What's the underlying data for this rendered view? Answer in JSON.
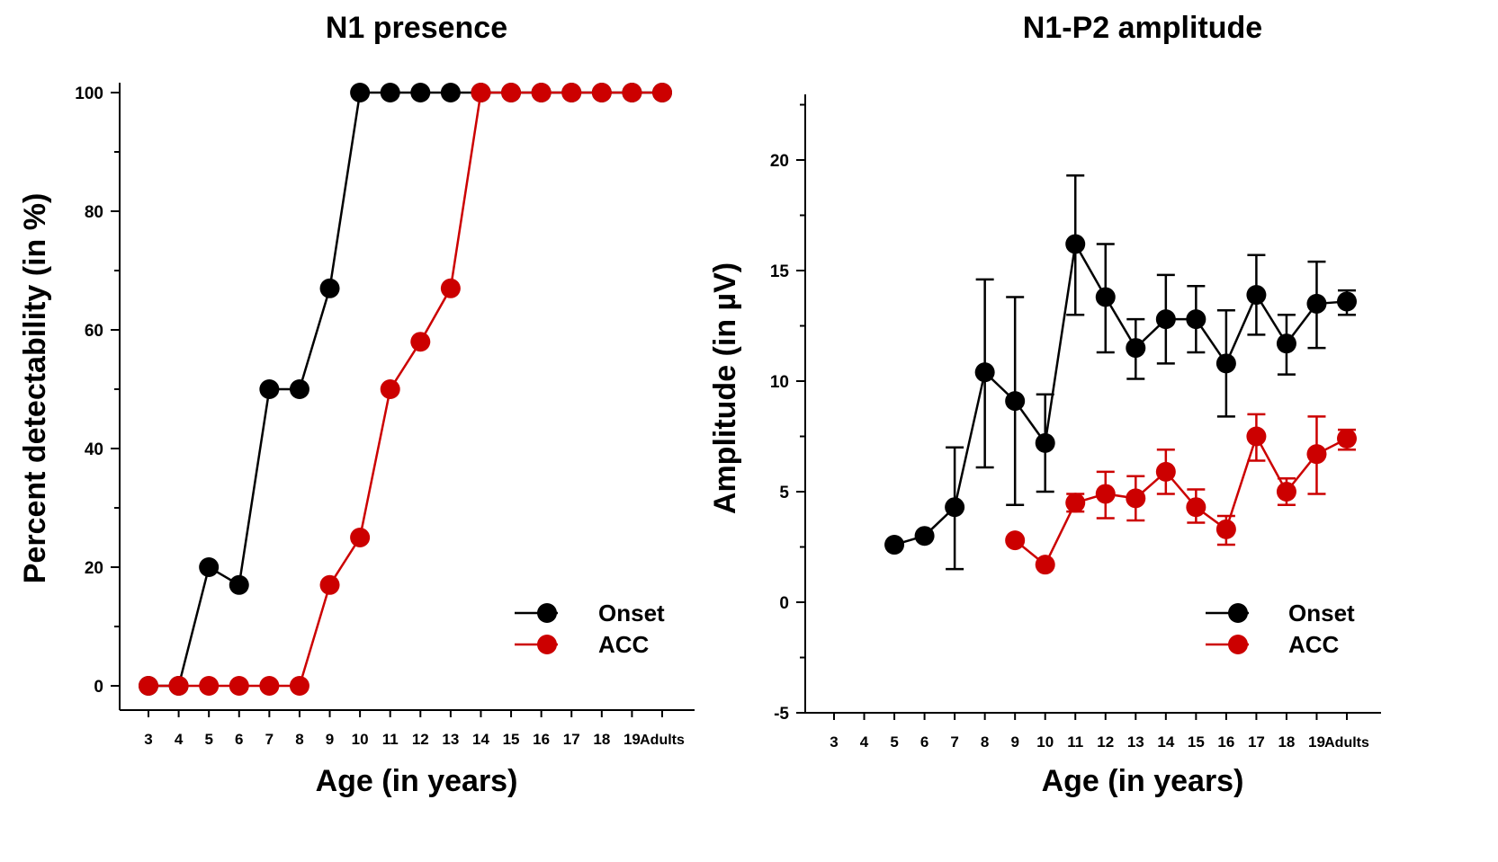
{
  "chart_data": [
    {
      "type": "line",
      "title": "N1 presence",
      "xlabel": "Age (in years)",
      "ylabel": "Percent detectability (in %)",
      "categories": [
        "3",
        "4",
        "5",
        "6",
        "7",
        "8",
        "9",
        "10",
        "11",
        "12",
        "13",
        "14",
        "15",
        "16",
        "17",
        "18",
        "19",
        "Adults"
      ],
      "ylim": [
        0,
        100
      ],
      "yticks": [
        0,
        20,
        40,
        60,
        80,
        100
      ],
      "legend_position": "bottom-right",
      "series": [
        {
          "name": "Onset",
          "color": "#000000",
          "values": [
            0,
            0,
            20,
            17,
            50,
            50,
            67,
            100,
            100,
            100,
            100,
            100,
            100,
            100,
            100,
            100,
            100,
            100
          ]
        },
        {
          "name": "ACC",
          "color": "#cc0000",
          "values": [
            0,
            0,
            0,
            0,
            0,
            0,
            17,
            25,
            50,
            58,
            67,
            100,
            100,
            100,
            100,
            100,
            100,
            100
          ]
        }
      ]
    },
    {
      "type": "line",
      "title": "N1-P2 amplitude",
      "xlabel": "Age (in years)",
      "ylabel": "Amplitude (in µV)",
      "categories": [
        "3",
        "4",
        "5",
        "6",
        "7",
        "8",
        "9",
        "10",
        "11",
        "12",
        "13",
        "14",
        "15",
        "16",
        "17",
        "18",
        "19",
        "Adults"
      ],
      "ylim": [
        -5,
        24
      ],
      "yticks": [
        -5,
        0,
        5,
        10,
        15,
        20
      ],
      "legend_position": "bottom-right",
      "series": [
        {
          "name": "Onset",
          "color": "#000000",
          "values": [
            null,
            null,
            2.6,
            3.0,
            4.3,
            10.4,
            9.1,
            7.2,
            16.2,
            13.8,
            11.5,
            12.8,
            12.8,
            10.8,
            13.9,
            11.7,
            13.5,
            13.6
          ],
          "err_low": [
            null,
            null,
            null,
            null,
            1.5,
            6.1,
            4.4,
            5.0,
            13.0,
            11.3,
            10.1,
            10.8,
            11.3,
            8.4,
            12.1,
            10.3,
            11.5,
            13.0
          ],
          "err_high": [
            null,
            null,
            null,
            null,
            7.0,
            14.6,
            13.8,
            9.4,
            19.3,
            16.2,
            12.8,
            14.8,
            14.3,
            13.2,
            15.7,
            13.0,
            15.4,
            14.1
          ]
        },
        {
          "name": "ACC",
          "color": "#cc0000",
          "values": [
            null,
            null,
            null,
            null,
            null,
            null,
            2.8,
            1.7,
            4.5,
            4.9,
            4.7,
            5.9,
            4.3,
            3.3,
            7.5,
            5.0,
            6.7,
            7.4
          ],
          "err_low": [
            null,
            null,
            null,
            null,
            null,
            null,
            null,
            null,
            4.1,
            3.8,
            3.7,
            4.9,
            3.6,
            2.6,
            6.4,
            4.4,
            4.9,
            6.9
          ],
          "err_high": [
            null,
            null,
            null,
            null,
            null,
            null,
            null,
            null,
            4.9,
            5.9,
            5.7,
            6.9,
            5.1,
            3.9,
            8.5,
            5.6,
            8.4,
            7.8
          ]
        }
      ]
    }
  ]
}
